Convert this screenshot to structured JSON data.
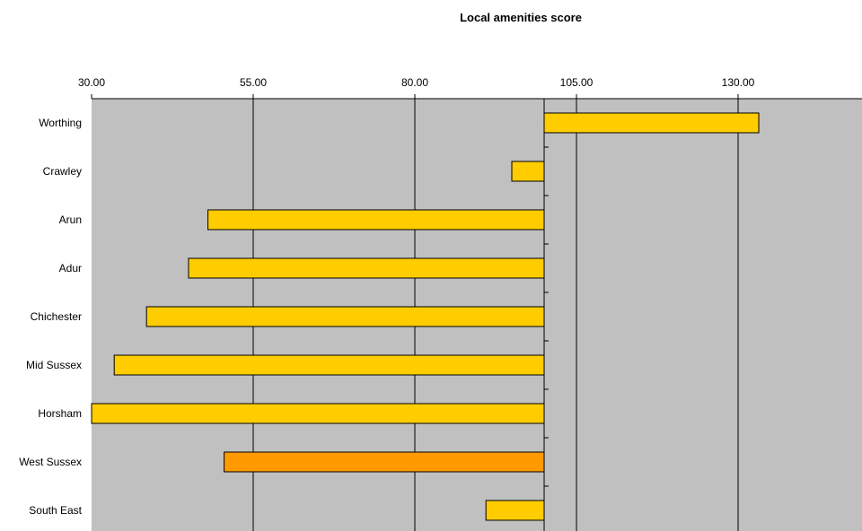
{
  "chart_data": {
    "type": "bar",
    "orientation": "horizontal",
    "title": "Local amenities score",
    "xlabel": "",
    "ylabel": "",
    "baseline": 100,
    "xlim": [
      30,
      150
    ],
    "tick_values": [
      30,
      55,
      80,
      105,
      130
    ],
    "tick_labels": [
      "30.00",
      "55.00",
      "80.00",
      "105.00",
      "130.00"
    ],
    "categories": [
      "Worthing",
      "Crawley",
      "Arun",
      "Adur",
      "Chichester",
      "Mid Sussex",
      "Horsham",
      "West Sussex",
      "South East"
    ],
    "values": [
      133.2,
      95,
      48,
      45,
      38.5,
      33.5,
      30,
      50.5,
      91
    ],
    "grid": true,
    "legend": "none",
    "colors": {
      "plot_background": "#c0c0c0",
      "bar": "#ffcc00",
      "highlight_bar": "#ff9900",
      "highlight_category": "West Sussex",
      "gridline": "#000000",
      "bar_outline": "#000000"
    }
  }
}
